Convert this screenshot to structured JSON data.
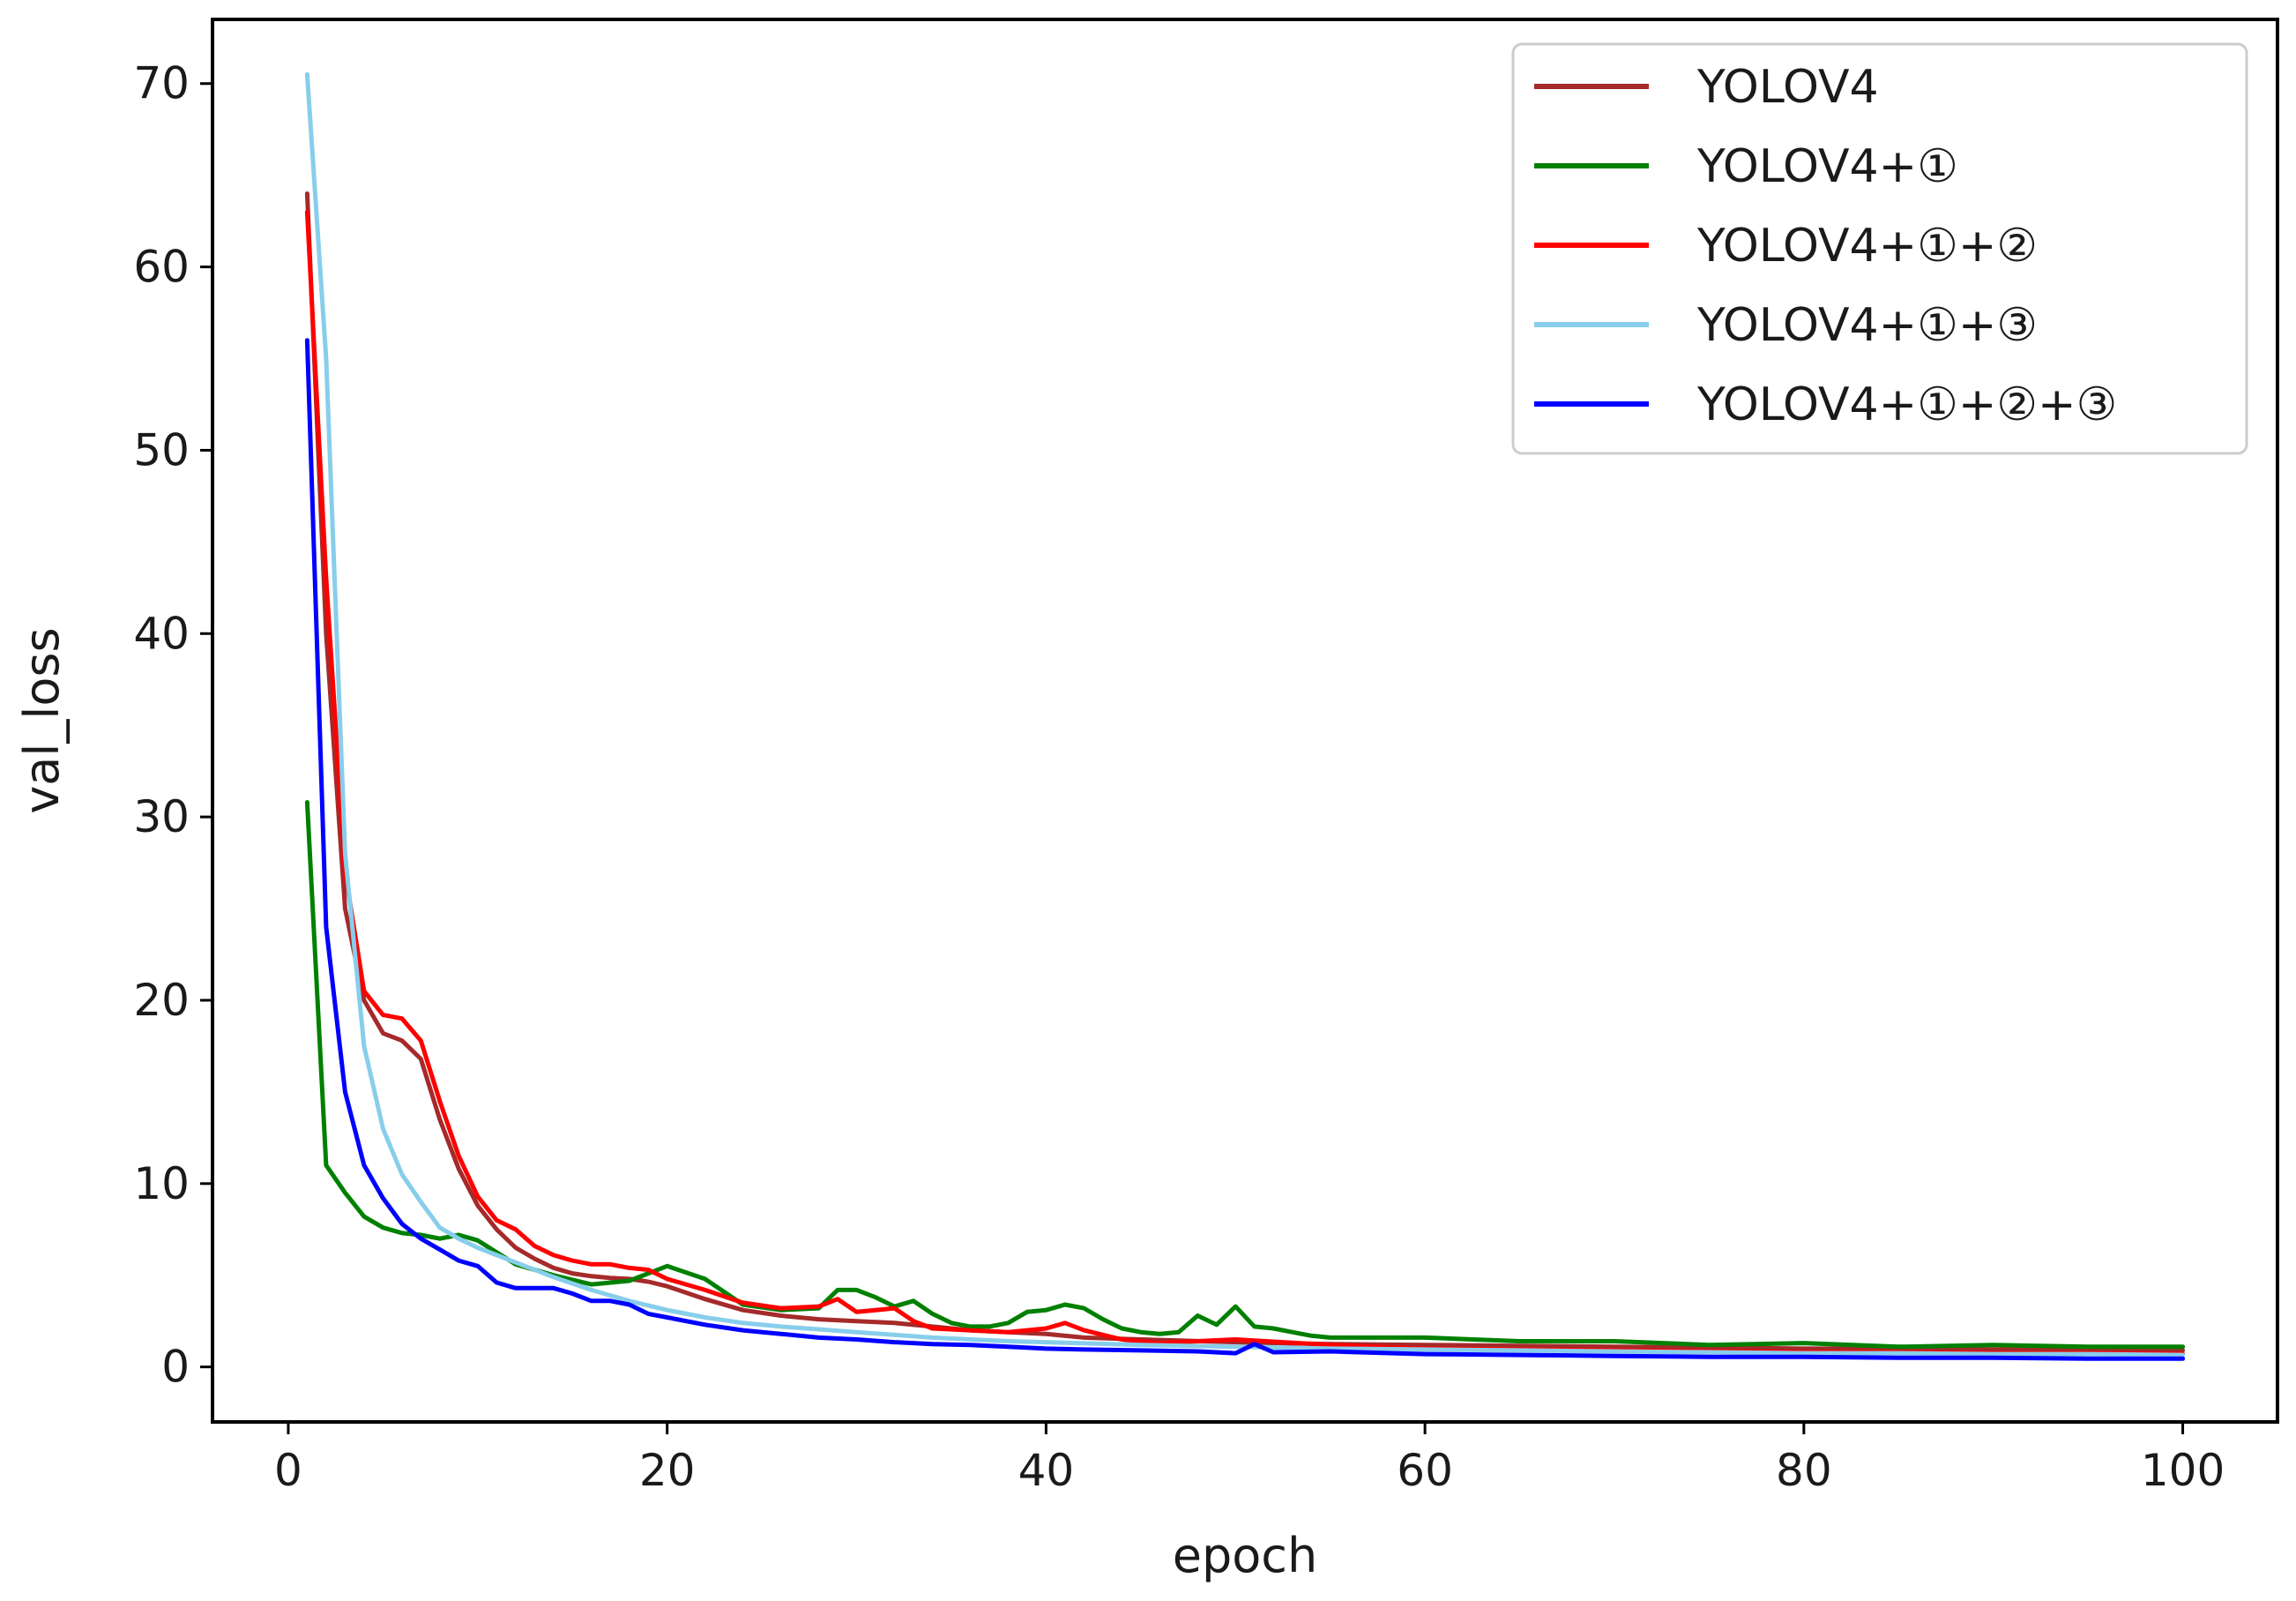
{
  "chart_data": {
    "type": "line",
    "title": "",
    "xlabel": "epoch",
    "ylabel": "val_loss",
    "xlim": [
      -4,
      105
    ],
    "ylim": [
      -3,
      73.5
    ],
    "xticks": [
      0,
      20,
      40,
      60,
      80,
      100
    ],
    "yticks": [
      0,
      10,
      20,
      30,
      40,
      50,
      60,
      70
    ],
    "grid": false,
    "legend_position": "top-right",
    "series": [
      {
        "name": "YOLOV4",
        "color": "#a52a2a",
        "x": [
          1,
          2,
          3,
          4,
          5,
          6,
          7,
          8,
          9,
          10,
          11,
          12,
          13,
          14,
          15,
          16,
          17,
          18,
          19,
          20,
          22,
          24,
          26,
          28,
          30,
          32,
          34,
          36,
          38,
          40,
          42,
          45,
          50,
          55,
          60,
          65,
          70,
          75,
          80,
          85,
          90,
          95,
          100
        ],
        "values": [
          64,
          40,
          25,
          20,
          18.2,
          17.8,
          16.8,
          13.5,
          10.8,
          8.8,
          7.5,
          6.5,
          5.9,
          5.4,
          5.1,
          4.95,
          4.85,
          4.8,
          4.65,
          4.4,
          3.7,
          3.1,
          2.8,
          2.6,
          2.5,
          2.4,
          2.2,
          2.0,
          1.9,
          1.8,
          1.6,
          1.5,
          1.35,
          1.25,
          1.2,
          1.15,
          1.1,
          1.05,
          1.0,
          1.0,
          0.95,
          0.95,
          0.9
        ]
      },
      {
        "name": "YOLOV4+①",
        "color": "#008000",
        "x": [
          1,
          2,
          3,
          4,
          5,
          6,
          7,
          8,
          9,
          10,
          12,
          14,
          16,
          18,
          20,
          22,
          24,
          26,
          28,
          29,
          30,
          31,
          32,
          33,
          34,
          35,
          36,
          37,
          38,
          39,
          40,
          41,
          42,
          43,
          44,
          45,
          46,
          47,
          48,
          49,
          50,
          51,
          52,
          53,
          54,
          55,
          60,
          65,
          70,
          75,
          80,
          85,
          90,
          95,
          100
        ],
        "values": [
          30.8,
          11,
          9.5,
          8.2,
          7.6,
          7.3,
          7.2,
          7,
          7.2,
          6.9,
          5.6,
          5.0,
          4.5,
          4.7,
          5.5,
          4.8,
          3.4,
          3.1,
          3.2,
          4.2,
          4.2,
          3.8,
          3.3,
          3.6,
          2.9,
          2.4,
          2.2,
          2.2,
          2.4,
          3.0,
          3.1,
          3.4,
          3.2,
          2.6,
          2.1,
          1.9,
          1.8,
          1.9,
          2.8,
          2.3,
          3.3,
          2.2,
          2.1,
          1.9,
          1.7,
          1.6,
          1.6,
          1.4,
          1.4,
          1.2,
          1.3,
          1.1,
          1.2,
          1.1,
          1.1
        ]
      },
      {
        "name": "YOLOV4+①+②",
        "color": "#ff0000",
        "x": [
          1,
          2,
          3,
          4,
          5,
          6,
          7,
          8,
          9,
          10,
          11,
          12,
          13,
          14,
          15,
          16,
          17,
          18,
          19,
          20,
          22,
          24,
          26,
          28,
          29,
          30,
          31,
          32,
          33,
          34,
          36,
          38,
          40,
          41,
          42,
          44,
          46,
          48,
          50,
          55,
          60,
          65,
          70,
          75,
          80,
          85,
          90,
          95,
          100
        ],
        "values": [
          63,
          43,
          27,
          20.5,
          19.2,
          19,
          17.8,
          14.5,
          11.5,
          9.3,
          8,
          7.5,
          6.6,
          6.1,
          5.8,
          5.6,
          5.6,
          5.4,
          5.3,
          4.8,
          4.2,
          3.5,
          3.2,
          3.3,
          3.7,
          3.0,
          3.1,
          3.2,
          2.5,
          2.1,
          2.0,
          1.9,
          2.1,
          2.4,
          2.0,
          1.5,
          1.3,
          1.4,
          1.5,
          1.2,
          1.0,
          0.95,
          0.9,
          0.85,
          0.8,
          0.8,
          0.75,
          0.75,
          0.7
        ]
      },
      {
        "name": "YOLOV4+①+③",
        "color": "#87ceeb",
        "x": [
          1,
          2,
          3,
          4,
          5,
          6,
          7,
          8,
          9,
          10,
          12,
          14,
          16,
          18,
          20,
          22,
          24,
          26,
          28,
          30,
          32,
          34,
          36,
          38,
          40,
          45,
          50,
          55,
          60,
          65,
          70,
          75,
          80,
          85,
          90,
          95,
          100
        ],
        "values": [
          70.5,
          55,
          28,
          17.5,
          13,
          10.5,
          9,
          7.6,
          7.0,
          6.5,
          5.7,
          4.9,
          4.2,
          3.6,
          3.1,
          2.7,
          2.4,
          2.2,
          2.05,
          1.9,
          1.75,
          1.6,
          1.5,
          1.4,
          1.35,
          1.2,
          1.1,
          1.0,
          0.95,
          0.9,
          0.85,
          0.8,
          0.75,
          0.75,
          0.7,
          0.7,
          0.65
        ]
      },
      {
        "name": "YOLOV4+①+②+③",
        "color": "#0000ff",
        "x": [
          1,
          2,
          3,
          4,
          5,
          6,
          7,
          8,
          9,
          10,
          11,
          12,
          13,
          14,
          15,
          16,
          17,
          18,
          19,
          20,
          22,
          24,
          26,
          28,
          30,
          32,
          34,
          36,
          38,
          40,
          42,
          45,
          48,
          50,
          51,
          52,
          55,
          60,
          65,
          70,
          75,
          80,
          85,
          90,
          95,
          100
        ],
        "values": [
          56,
          24,
          15,
          11,
          9.2,
          7.8,
          7.0,
          6.4,
          5.8,
          5.5,
          4.6,
          4.3,
          4.3,
          4.3,
          4.0,
          3.6,
          3.6,
          3.4,
          2.9,
          2.7,
          2.3,
          2.0,
          1.8,
          1.6,
          1.5,
          1.35,
          1.25,
          1.2,
          1.1,
          1.0,
          0.95,
          0.9,
          0.85,
          0.75,
          1.25,
          0.8,
          0.85,
          0.7,
          0.65,
          0.6,
          0.55,
          0.55,
          0.5,
          0.5,
          0.45,
          0.45
        ]
      }
    ]
  }
}
